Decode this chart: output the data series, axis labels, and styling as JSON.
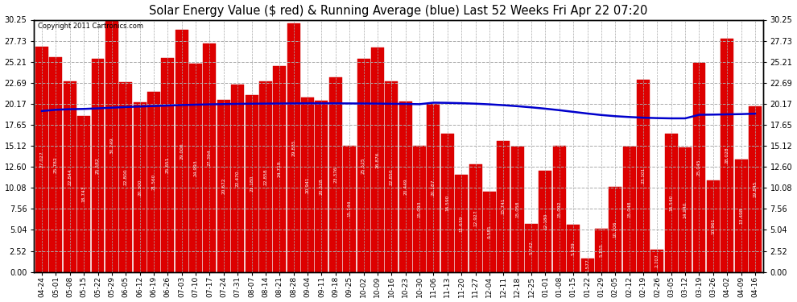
{
  "title": "Solar Energy Value ($ red) & Running Average (blue) Last 52 Weeks Fri Apr 22 07:20",
  "copyright": "Copyright 2011 Cartronics.com",
  "bar_color": "#dd0000",
  "line_color": "#0000cc",
  "background_color": "#ffffff",
  "plot_background": "#ffffff",
  "grid_color": "#aaaaaa",
  "ylim": [
    0,
    30.25
  ],
  "yticks": [
    0.0,
    2.52,
    5.04,
    7.56,
    10.08,
    12.6,
    15.12,
    17.65,
    20.17,
    22.69,
    25.21,
    27.73,
    30.25
  ],
  "categories": [
    "04-24",
    "05-01",
    "05-08",
    "05-15",
    "05-22",
    "05-29",
    "06-05",
    "06-12",
    "06-19",
    "06-26",
    "07-03",
    "07-10",
    "07-17",
    "07-24",
    "07-31",
    "08-07",
    "08-14",
    "08-21",
    "08-28",
    "09-04",
    "09-11",
    "09-18",
    "09-25",
    "10-02",
    "10-09",
    "10-16",
    "10-23",
    "10-30",
    "11-06",
    "11-13",
    "11-20",
    "11-27",
    "12-04",
    "12-11",
    "12-18",
    "12-25",
    "01-01",
    "01-08",
    "01-15",
    "01-22",
    "01-29",
    "02-05",
    "02-12",
    "02-19",
    "02-26",
    "03-05",
    "03-12",
    "03-19",
    "03-26",
    "04-02",
    "04-09",
    "04-16"
  ],
  "bar_values": [
    27.027,
    25.782,
    22.844,
    18.743,
    25.582,
    30.249,
    22.8,
    20.3,
    21.56,
    25.651,
    29.0,
    24.993,
    27.394,
    20.672,
    22.47,
    21.18,
    22.858,
    24.719,
    29.835,
    20.941,
    20.528,
    23.376,
    15.144,
    25.525,
    26.876,
    22.85,
    20.449,
    15.093,
    20.187,
    16.59,
    11.639,
    12.927,
    9.581,
    15.741,
    15.058,
    5.742,
    12.18,
    15.092,
    5.639,
    1.577,
    5.155,
    10.206,
    15.048,
    23.101,
    2.707,
    16.54,
    14.94,
    25.045,
    10.961,
    28.028,
    13.498,
    19.845
  ],
  "running_avg": [
    19.3,
    19.45,
    19.52,
    19.55,
    19.62,
    19.7,
    19.78,
    19.84,
    19.9,
    19.96,
    20.02,
    20.06,
    20.1,
    20.13,
    20.16,
    20.18,
    20.19,
    20.2,
    20.21,
    20.22,
    20.22,
    20.22,
    20.21,
    20.2,
    20.19,
    20.17,
    20.15,
    20.12,
    20.3,
    20.28,
    20.24,
    20.18,
    20.1,
    20.0,
    19.88,
    19.74,
    19.58,
    19.4,
    19.2,
    19.0,
    18.82,
    18.68,
    18.58,
    18.5,
    18.45,
    18.42,
    18.42,
    18.85,
    18.87,
    18.9,
    18.93,
    18.98
  ]
}
